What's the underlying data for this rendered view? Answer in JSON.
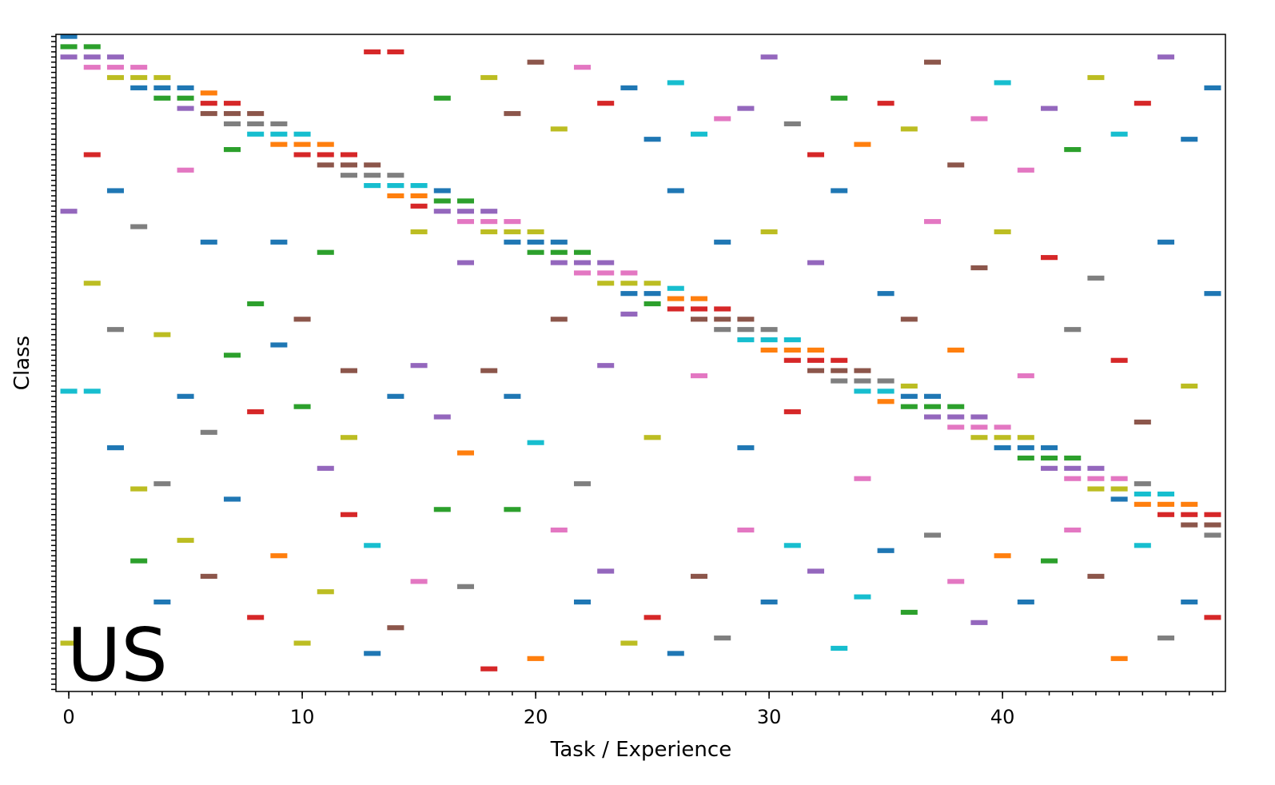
{
  "chart_data": {
    "type": "scatter",
    "xlabel": "Task / Experience",
    "ylabel": "Class",
    "annotation": "US",
    "xlim": [
      -0.55,
      49.55
    ],
    "ylim": [
      -0.4,
      127.4
    ],
    "xticks": [
      0,
      10,
      20,
      30,
      40
    ],
    "xminorticks": [
      0,
      1,
      2,
      3,
      4,
      5,
      6,
      7,
      8,
      9,
      10,
      11,
      12,
      13,
      14,
      15,
      16,
      17,
      18,
      19,
      20,
      21,
      22,
      23,
      24,
      25,
      26,
      27,
      28,
      29,
      30,
      31,
      32,
      33,
      34,
      35,
      36,
      37,
      38,
      39,
      40,
      41,
      42,
      43,
      44,
      45,
      46,
      47,
      48,
      49
    ],
    "yticks": [
      0,
      1,
      2,
      3,
      4,
      5,
      6,
      7,
      8,
      9,
      10,
      11,
      12,
      13,
      14,
      15,
      16,
      17,
      18,
      19,
      20,
      21,
      22,
      23,
      24,
      25,
      26,
      27,
      28,
      29,
      30,
      31,
      32,
      33,
      34,
      35,
      36,
      37,
      38,
      39,
      40,
      41,
      42,
      43,
      44,
      45,
      46,
      47,
      48,
      49,
      50,
      51,
      52,
      53,
      54,
      55,
      56,
      57,
      58,
      59,
      60,
      61,
      62,
      63,
      64,
      65,
      66,
      67,
      68,
      69,
      70,
      71,
      72,
      73,
      74,
      75,
      76,
      77,
      78,
      79,
      80,
      81,
      82,
      83,
      84,
      85,
      86,
      87,
      88,
      89,
      90,
      91,
      92,
      93,
      94,
      95,
      96,
      97,
      98,
      99,
      100,
      101,
      102,
      103,
      104,
      105,
      106,
      107,
      108,
      109,
      110,
      111,
      112,
      113,
      114,
      115,
      116,
      117,
      118,
      119,
      120,
      121,
      122,
      123,
      124,
      125,
      126,
      127
    ],
    "colors": [
      "#1f77b4",
      "#ff7f0e",
      "#2ca02c",
      "#d62728",
      "#9467bd",
      "#8c564b",
      "#e377c2",
      "#7f7f7f",
      "#bcbd22",
      "#17becf"
    ],
    "x": [
      0,
      0,
      0,
      0,
      0,
      0,
      1,
      1,
      1,
      1,
      1,
      1,
      2,
      2,
      2,
      2,
      2,
      2,
      3,
      3,
      3,
      3,
      3,
      3,
      4,
      4,
      4,
      4,
      4,
      4,
      5,
      5,
      5,
      5,
      5,
      5,
      6,
      6,
      6,
      6,
      6,
      6,
      7,
      7,
      7,
      7,
      7,
      7,
      8,
      8,
      8,
      8,
      8,
      8,
      9,
      9,
      9,
      9,
      9,
      9,
      10,
      10,
      10,
      10,
      10,
      10,
      11,
      11,
      11,
      11,
      11,
      11,
      12,
      12,
      12,
      12,
      12,
      12,
      13,
      13,
      13,
      13,
      13,
      13,
      14,
      14,
      14,
      14,
      14,
      14,
      15,
      15,
      15,
      15,
      15,
      15,
      16,
      16,
      16,
      16,
      16,
      16,
      17,
      17,
      17,
      17,
      17,
      17,
      18,
      18,
      18,
      18,
      18,
      18,
      19,
      19,
      19,
      19,
      19,
      19,
      20,
      20,
      20,
      20,
      20,
      20,
      21,
      21,
      21,
      21,
      21,
      21,
      22,
      22,
      22,
      22,
      22,
      22,
      23,
      23,
      23,
      23,
      23,
      23,
      24,
      24,
      24,
      24,
      24,
      24,
      25,
      25,
      25,
      25,
      25,
      25,
      26,
      26,
      26,
      26,
      26,
      26,
      27,
      27,
      27,
      27,
      27,
      27,
      28,
      28,
      28,
      28,
      28,
      28,
      29,
      29,
      29,
      29,
      29,
      29,
      30,
      30,
      30,
      30,
      30,
      30,
      31,
      31,
      31,
      31,
      31,
      31,
      32,
      32,
      32,
      32,
      32,
      32,
      33,
      33,
      33,
      33,
      33,
      33,
      34,
      34,
      34,
      34,
      34,
      34,
      35,
      35,
      35,
      35,
      35,
      35,
      36,
      36,
      36,
      36,
      36,
      36,
      37,
      37,
      37,
      37,
      37,
      37,
      38,
      38,
      38,
      38,
      38,
      38,
      39,
      39,
      39,
      39,
      39,
      39,
      40,
      40,
      40,
      40,
      40,
      40,
      41,
      41,
      41,
      41,
      41,
      41,
      42,
      42,
      42,
      42,
      42,
      42,
      43,
      43,
      43,
      43,
      43,
      43,
      44,
      44,
      44,
      44,
      44,
      44,
      45,
      45,
      45,
      45,
      45,
      45,
      46,
      46,
      46,
      46,
      46,
      46,
      47,
      47,
      47,
      47,
      47,
      47,
      48,
      48,
      48,
      48,
      48,
      48,
      49,
      49,
      49,
      49,
      49,
      49
    ],
    "values": [
      0,
      2,
      4,
      34,
      69,
      118,
      2,
      4,
      6,
      23,
      48,
      69,
      4,
      6,
      8,
      30,
      57,
      80,
      6,
      8,
      10,
      37,
      88,
      102,
      8,
      10,
      12,
      58,
      87,
      110,
      10,
      12,
      14,
      26,
      70,
      98,
      11,
      13,
      15,
      40,
      77,
      105,
      13,
      15,
      17,
      22,
      62,
      90,
      15,
      17,
      19,
      52,
      73,
      113,
      17,
      19,
      21,
      40,
      60,
      101,
      19,
      21,
      23,
      55,
      72,
      118,
      21,
      23,
      25,
      42,
      84,
      108,
      23,
      25,
      27,
      65,
      78,
      93,
      25,
      27,
      29,
      3,
      99,
      120,
      27,
      29,
      31,
      3,
      70,
      115,
      29,
      31,
      33,
      38,
      64,
      106,
      30,
      32,
      34,
      12,
      74,
      92,
      32,
      34,
      36,
      44,
      81,
      107,
      34,
      36,
      38,
      8,
      65,
      123,
      36,
      38,
      40,
      15,
      70,
      92,
      38,
      40,
      42,
      5,
      79,
      121,
      40,
      42,
      44,
      18,
      55,
      96,
      42,
      44,
      46,
      6,
      87,
      110,
      44,
      46,
      48,
      13,
      64,
      104,
      46,
      48,
      50,
      10,
      54,
      118,
      48,
      50,
      52,
      20,
      78,
      113,
      49,
      51,
      53,
      9,
      30,
      120,
      51,
      53,
      55,
      19,
      66,
      105,
      53,
      55,
      57,
      16,
      40,
      117,
      55,
      57,
      59,
      14,
      80,
      96,
      57,
      59,
      61,
      4,
      38,
      110,
      59,
      61,
      63,
      17,
      73,
      99,
      61,
      63,
      65,
      23,
      44,
      104,
      63,
      65,
      67,
      12,
      30,
      119,
      65,
      67,
      69,
      21,
      86,
      109,
      67,
      69,
      71,
      13,
      50,
      100,
      68,
      70,
      72,
      18,
      55,
      112,
      70,
      72,
      74,
      5,
      36,
      97,
      72,
      74,
      76,
      25,
      61,
      106,
      74,
      76,
      78,
      16,
      45,
      114,
      76,
      78,
      80,
      9,
      38,
      101,
      78,
      80,
      82,
      26,
      66,
      110,
      80,
      82,
      84,
      14,
      43,
      102,
      82,
      84,
      86,
      22,
      57,
      96,
      84,
      86,
      88,
      8,
      47,
      105,
      86,
      88,
      90,
      19,
      63,
      121,
      87,
      89,
      91,
      13,
      75,
      99,
      89,
      91,
      93,
      4,
      40,
      117,
      91,
      93,
      95,
      20,
      68,
      110,
      93,
      95,
      97,
      10,
      50,
      113
    ]
  }
}
